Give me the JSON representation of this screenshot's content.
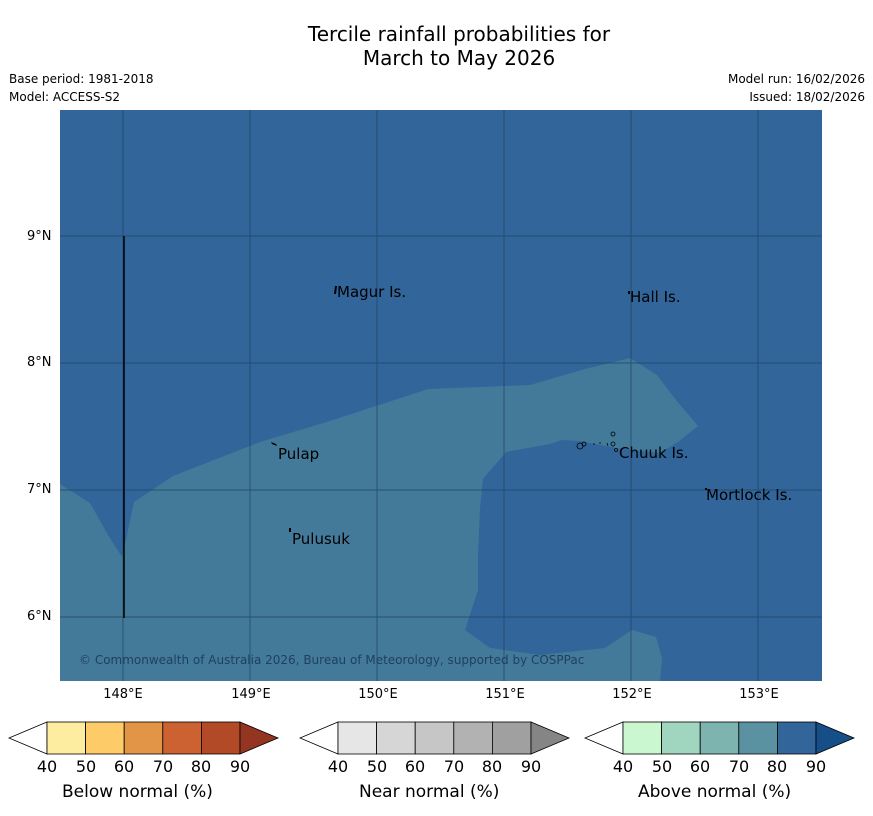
{
  "title_line1": "Tercile rainfall probabilities for",
  "title_line2": "March to May 2026",
  "base_period": "Base period: 1981-2018",
  "model": "Model: ACCESS-S2",
  "model_run": "Model run: 16/02/2026",
  "issued": "Issued: 18/02/2026",
  "map": {
    "lat_labels": [
      "9°N",
      "8°N",
      "7°N",
      "6°N"
    ],
    "lon_labels": [
      "148°E",
      "149°E",
      "150°E",
      "151°E",
      "152°E",
      "153°E"
    ],
    "places": [
      "Magur Is.",
      "Hall Is.",
      "Pulap",
      "Chuuk Is.",
      "Mortlock Is.",
      "Pulusuk"
    ],
    "copyright": "© Commonwealth of Australia 2026, Bureau of Meteorology, supported by COSPPac",
    "colors": {
      "above_80": "#32659a",
      "above_70": "#447a99",
      "grid": "#1f3f5e"
    }
  },
  "legends": [
    {
      "title": "Below normal (%)",
      "ticks": [
        "40",
        "50",
        "60",
        "70",
        "80",
        "90"
      ],
      "colors": [
        "#ffffff",
        "#fdeda0",
        "#fdcb68",
        "#e29546",
        "#cc6232",
        "#b24a28",
        "#943522"
      ]
    },
    {
      "title": "Near normal (%)",
      "ticks": [
        "40",
        "50",
        "60",
        "70",
        "80",
        "90"
      ],
      "colors": [
        "#ffffff",
        "#e6e6e6",
        "#d6d6d6",
        "#c6c6c6",
        "#b2b2b2",
        "#a0a0a0",
        "#858585"
      ]
    },
    {
      "title": "Above normal (%)",
      "ticks": [
        "40",
        "50",
        "60",
        "70",
        "80",
        "90"
      ],
      "colors": [
        "#ffffff",
        "#cbf7d0",
        "#a0d6bf",
        "#7db4b0",
        "#5b92a2",
        "#32659a",
        "#164e87"
      ]
    }
  ]
}
